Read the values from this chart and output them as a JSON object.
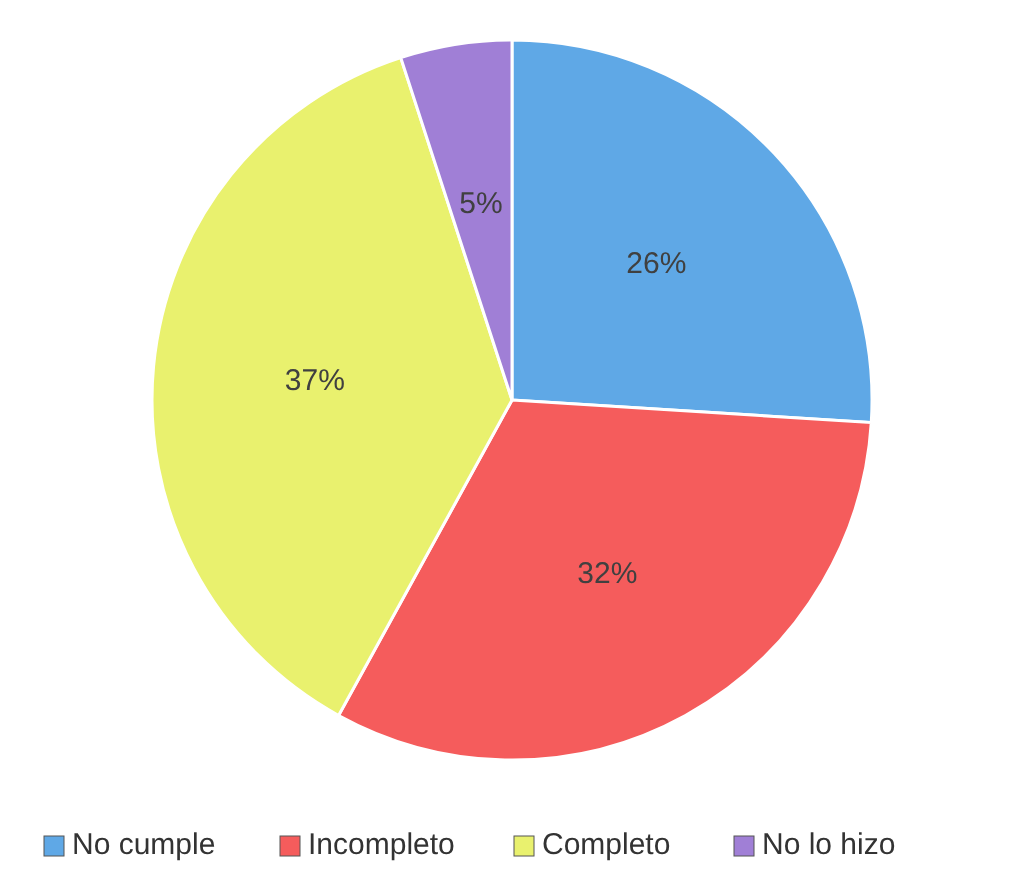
{
  "chart_data": {
    "type": "pie",
    "categories": [
      "No cumple",
      "Incompleto",
      "Completo",
      "No lo hizo"
    ],
    "values": [
      26,
      32,
      37,
      5
    ],
    "colors": [
      "#5fa8e6",
      "#f55c5c",
      "#e9f16e",
      "#a07fd6"
    ],
    "value_labels": [
      "26%",
      "32%",
      "37%",
      "5%"
    ],
    "legend": "bottom"
  }
}
